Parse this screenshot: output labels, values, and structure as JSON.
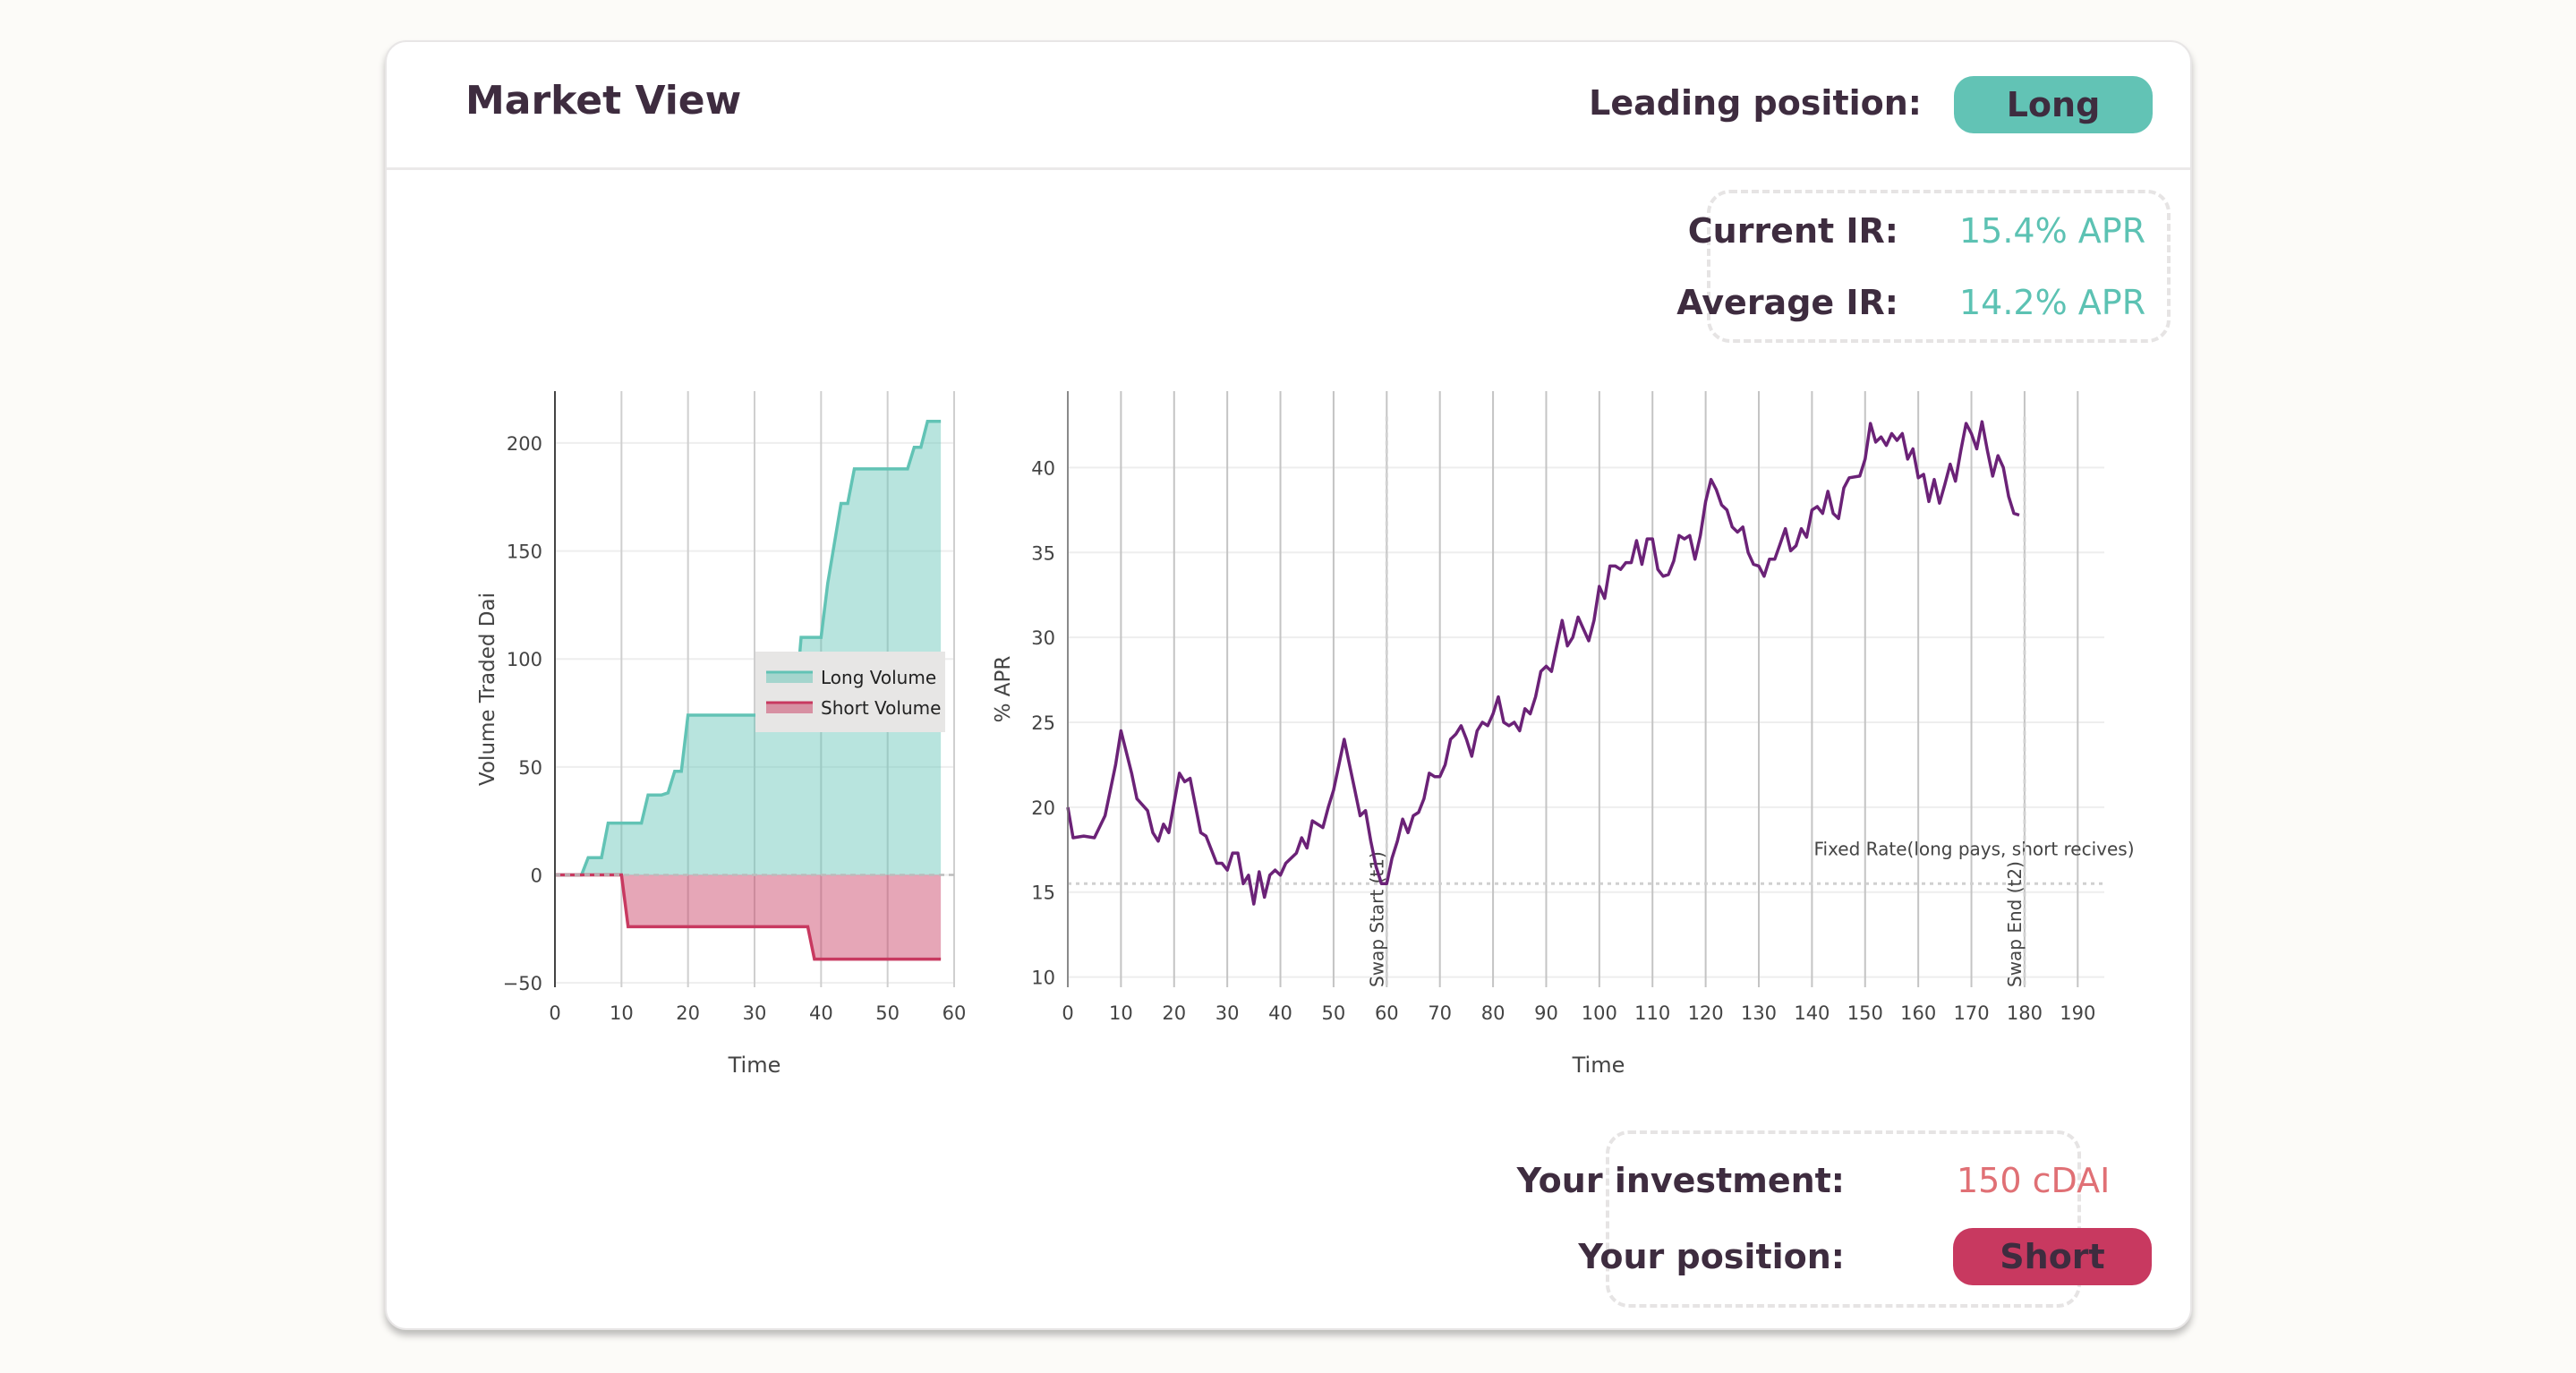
{
  "header": {
    "title": "Market View",
    "leading_position_label": "Leading position:",
    "leading_position_value": "Long"
  },
  "ir": {
    "current_label": "Current IR:",
    "current_value": "15.4% APR",
    "average_label": "Average IR:",
    "average_value": "14.2% APR"
  },
  "investment": {
    "investment_label": "Your investment:",
    "investment_value": "150 cDAI",
    "position_label": "Your position:",
    "position_value": "Short"
  },
  "colors": {
    "long": "#62c3b5",
    "short": "#c83960",
    "apr_line": "#6b2277",
    "text": "#3e2c3f"
  },
  "chart_data": [
    {
      "type": "area",
      "xlabel": "Time",
      "ylabel": "Volume Traded Dai",
      "xlim": [
        0,
        60
      ],
      "ylim": [
        -52,
        224
      ],
      "xticks": [
        "0",
        "10",
        "20",
        "30",
        "40",
        "50",
        "60"
      ],
      "yticks": [
        "−50",
        "0",
        "50",
        "100",
        "150",
        "200"
      ],
      "grid": true,
      "legend_position": "right",
      "series": [
        {
          "name": "Long Volume",
          "x": [
            0,
            4,
            5,
            7,
            8,
            13,
            14,
            16,
            17,
            18,
            19,
            20,
            36,
            37,
            40,
            41,
            43,
            44,
            45,
            53,
            54,
            55,
            56,
            58
          ],
          "y": [
            0,
            0,
            8,
            8,
            24,
            24,
            37,
            37,
            38,
            48,
            48,
            74,
            74,
            110,
            110,
            135,
            172,
            172,
            188,
            188,
            198,
            198,
            210,
            210
          ]
        },
        {
          "name": "Short Volume",
          "x": [
            0,
            10,
            11,
            38,
            39,
            58
          ],
          "y": [
            0,
            0,
            -24,
            -24,
            -39,
            -39
          ]
        }
      ]
    },
    {
      "type": "line",
      "xlabel": "Time",
      "ylabel": "% APR",
      "xlim": [
        0,
        195
      ],
      "ylim": [
        9.4,
        44.5
      ],
      "xticks": [
        "0",
        "10",
        "20",
        "30",
        "40",
        "50",
        "60",
        "70",
        "80",
        "90",
        "100",
        "110",
        "120",
        "130",
        "140",
        "150",
        "160",
        "170",
        "180",
        "190"
      ],
      "yticks": [
        "10",
        "15",
        "20",
        "25",
        "30",
        "35",
        "40"
      ],
      "grid": true,
      "annotations": {
        "fixed_rate_label": "Fixed Rate(long pays, short recives)",
        "fixed_rate": 15.5,
        "swap_start_label": "Swap Start (t1)",
        "swap_start": 60,
        "swap_end_label": "Swap End (t2)",
        "swap_end": 180
      },
      "x": [
        0,
        1,
        3,
        5,
        7,
        9,
        10,
        12,
        13,
        15,
        16,
        17,
        18,
        19,
        21,
        22,
        23,
        25,
        26,
        28,
        29,
        30,
        31,
        32,
        33,
        34,
        35,
        36,
        37,
        38,
        39,
        40,
        41,
        43,
        44,
        45,
        46,
        48,
        49,
        50,
        51,
        52,
        53,
        54,
        55,
        56,
        57,
        58,
        59,
        60,
        61,
        62,
        63,
        64,
        65,
        66,
        67,
        68,
        69,
        70,
        71,
        72,
        73,
        74,
        75,
        76,
        77,
        78,
        79,
        80,
        81,
        82,
        83,
        84,
        85,
        86,
        87,
        88,
        89,
        90,
        91,
        92,
        93,
        94,
        95,
        96,
        97,
        98,
        99,
        100,
        101,
        102,
        103,
        104,
        105,
        106,
        107,
        108,
        109,
        110,
        111,
        112,
        113,
        114,
        115,
        116,
        117,
        118,
        119,
        120,
        121,
        122,
        123,
        124,
        125,
        126,
        127,
        128,
        129,
        130,
        131,
        132,
        133,
        134,
        135,
        136,
        137,
        138,
        139,
        140,
        141,
        142,
        143,
        144,
        145,
        146,
        147,
        149,
        150,
        151,
        152,
        153,
        154,
        155,
        156,
        157,
        158,
        159,
        160,
        161,
        162,
        163,
        164,
        165,
        166,
        167,
        168,
        169,
        170,
        171,
        172,
        173,
        174,
        175,
        176,
        177,
        178,
        179
      ],
      "y": [
        20,
        18.2,
        18.3,
        18.2,
        19.5,
        22.5,
        24.5,
        22,
        20.5,
        19.8,
        18.5,
        18,
        19,
        18.5,
        22,
        21.5,
        21.7,
        18.5,
        18.3,
        16.7,
        16.7,
        16.3,
        17.3,
        17.3,
        15.5,
        16,
        14.3,
        16.2,
        14.7,
        16,
        16.3,
        16,
        16.7,
        17.3,
        18.2,
        17.6,
        19.2,
        18.8,
        20,
        21,
        22.5,
        24,
        22.5,
        21,
        19.5,
        19.8,
        18,
        16.5,
        15.5,
        15.5,
        17,
        18,
        19.3,
        18.5,
        19.5,
        19.7,
        20.5,
        22,
        21.8,
        21.8,
        22.5,
        24,
        24.3,
        24.8,
        24,
        23,
        24.5,
        25,
        24.8,
        25.5,
        26.5,
        25,
        24.8,
        25,
        24.5,
        25.8,
        25.5,
        26.5,
        28,
        28.3,
        28,
        29.5,
        31,
        29.5,
        30,
        31.2,
        30.5,
        29.8,
        31,
        33,
        32.3,
        34.2,
        34.2,
        34,
        34.4,
        34.4,
        35.7,
        34.3,
        35.8,
        35.8,
        34,
        33.6,
        33.7,
        34.5,
        36,
        35.8,
        36,
        34.6,
        36,
        38,
        39.3,
        38.7,
        37.8,
        37.5,
        36.5,
        36.2,
        36.5,
        35,
        34.3,
        34.2,
        33.6,
        34.6,
        34.6,
        35.5,
        36.4,
        35.1,
        35.4,
        36.4,
        35.9,
        37.5,
        37.7,
        37.3,
        38.6,
        37.3,
        37,
        38.8,
        39.4,
        39.5,
        40.5,
        42.6,
        41.5,
        41.8,
        41.3,
        42,
        41.6,
        42,
        40.5,
        41.1,
        39.4,
        39.6,
        38,
        39.3,
        37.9,
        39,
        40.2,
        39.2,
        41,
        42.6,
        42,
        41.1,
        42.7,
        41,
        39.5,
        40.7,
        40,
        38.3,
        37.3,
        37.2
      ]
    }
  ]
}
